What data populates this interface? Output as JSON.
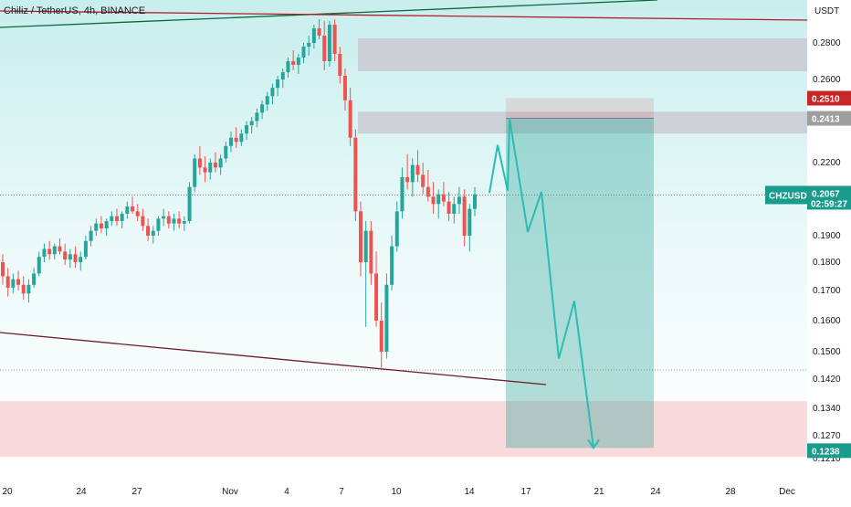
{
  "header": {
    "title": "Chiliz / TetherUS, 4h, BINANCE"
  },
  "colors": {
    "background_top": "#dff4f4",
    "background_bottom": "#ffffff",
    "up": "#26a69a",
    "down": "#ef5350",
    "resistance_zone": "#c8c8d0",
    "support_zone": "#f8d7da",
    "projection_box": "#1a9c8c",
    "projection_path": "#2bbcb4",
    "trendline_upper_green": "#0b6b3a",
    "trendline_upper_red": "#b0202a",
    "trendline_lower": "#6b1f2a",
    "tag_current": "#1a9c8c",
    "tag_red": "#c62828",
    "tag_gray": "#9e9e9e"
  },
  "chart_data": {
    "type": "candlestick",
    "currency": "USDT",
    "y_axis_ticks": [
      "0.2800",
      "0.2600",
      "0.2200",
      "0.1900",
      "0.1800",
      "0.1700",
      "0.1600",
      "0.1500",
      "0.1420",
      "0.1340",
      "0.1270",
      "0.1210"
    ],
    "x_axis_ticks": [
      "20",
      "24",
      "27",
      "Nov",
      "4",
      "7",
      "10",
      "14",
      "17",
      "21",
      "24",
      "28",
      "Dec"
    ],
    "price_tags": {
      "current_symbol": "CHZUSDT",
      "current_price": "0.2067",
      "countdown": "02:59:27",
      "upper_tag_red": "0.2510",
      "upper_tag_gray": "0.2413",
      "target_tag": "0.1238"
    },
    "zones": {
      "resistance_upper": [
        0.2645,
        0.2825
      ],
      "resistance_lower": [
        0.234,
        0.2445
      ],
      "support": [
        0.1215,
        0.136
      ]
    },
    "projection_box": {
      "price_from": 0.251,
      "price_to": 0.1238
    },
    "projection_path": [
      {
        "x": "Nov 15",
        "y": 0.2075
      },
      {
        "x": "Nov 16",
        "y": 0.2285
      },
      {
        "x": "Nov 16",
        "y": 0.2085
      },
      {
        "x": "Nov 17",
        "y": 0.2413
      },
      {
        "x": "Nov 18",
        "y": 0.1915
      },
      {
        "x": "Nov 19",
        "y": 0.208
      },
      {
        "x": "Nov 20",
        "y": 0.148
      },
      {
        "x": "Nov 21",
        "y": 0.1665
      },
      {
        "x": "Nov 22",
        "y": 0.1238
      }
    ],
    "candles": [
      [
        0.18,
        0.183,
        0.172,
        0.175
      ],
      [
        0.175,
        0.178,
        0.168,
        0.171
      ],
      [
        0.171,
        0.176,
        0.169,
        0.174
      ],
      [
        0.174,
        0.177,
        0.17,
        0.172
      ],
      [
        0.172,
        0.175,
        0.167,
        0.169
      ],
      [
        0.169,
        0.174,
        0.166,
        0.172
      ],
      [
        0.172,
        0.178,
        0.171,
        0.176
      ],
      [
        0.176,
        0.184,
        0.175,
        0.182
      ],
      [
        0.182,
        0.187,
        0.18,
        0.185
      ],
      [
        0.185,
        0.188,
        0.181,
        0.183
      ],
      [
        0.183,
        0.187,
        0.181,
        0.186
      ],
      [
        0.186,
        0.189,
        0.183,
        0.184
      ],
      [
        0.184,
        0.187,
        0.179,
        0.181
      ],
      [
        0.181,
        0.185,
        0.178,
        0.183
      ],
      [
        0.183,
        0.186,
        0.178,
        0.18
      ],
      [
        0.18,
        0.184,
        0.177,
        0.182
      ],
      [
        0.182,
        0.19,
        0.181,
        0.188
      ],
      [
        0.188,
        0.194,
        0.186,
        0.192
      ],
      [
        0.192,
        0.197,
        0.19,
        0.195
      ],
      [
        0.195,
        0.198,
        0.191,
        0.193
      ],
      [
        0.193,
        0.197,
        0.19,
        0.196
      ],
      [
        0.196,
        0.2,
        0.194,
        0.198
      ],
      [
        0.198,
        0.201,
        0.194,
        0.196
      ],
      [
        0.196,
        0.2,
        0.193,
        0.199
      ],
      [
        0.199,
        0.204,
        0.197,
        0.202
      ],
      [
        0.202,
        0.206,
        0.199,
        0.2
      ],
      [
        0.2,
        0.203,
        0.196,
        0.198
      ],
      [
        0.198,
        0.201,
        0.192,
        0.194
      ],
      [
        0.194,
        0.197,
        0.188,
        0.19
      ],
      [
        0.19,
        0.194,
        0.187,
        0.192
      ],
      [
        0.192,
        0.198,
        0.19,
        0.197
      ],
      [
        0.197,
        0.201,
        0.194,
        0.198
      ],
      [
        0.198,
        0.2,
        0.193,
        0.195
      ],
      [
        0.195,
        0.199,
        0.192,
        0.197
      ],
      [
        0.197,
        0.2,
        0.193,
        0.195
      ],
      [
        0.195,
        0.198,
        0.192,
        0.196
      ],
      [
        0.196,
        0.212,
        0.195,
        0.21
      ],
      [
        0.21,
        0.224,
        0.208,
        0.222
      ],
      [
        0.222,
        0.228,
        0.215,
        0.218
      ],
      [
        0.218,
        0.223,
        0.212,
        0.216
      ],
      [
        0.216,
        0.222,
        0.213,
        0.22
      ],
      [
        0.22,
        0.225,
        0.216,
        0.218
      ],
      [
        0.218,
        0.224,
        0.215,
        0.222
      ],
      [
        0.222,
        0.23,
        0.22,
        0.228
      ],
      [
        0.228,
        0.235,
        0.225,
        0.232
      ],
      [
        0.232,
        0.237,
        0.227,
        0.23
      ],
      [
        0.23,
        0.236,
        0.228,
        0.234
      ],
      [
        0.234,
        0.24,
        0.231,
        0.238
      ],
      [
        0.238,
        0.242,
        0.234,
        0.24
      ],
      [
        0.24,
        0.246,
        0.237,
        0.244
      ],
      [
        0.244,
        0.25,
        0.241,
        0.248
      ],
      [
        0.248,
        0.254,
        0.245,
        0.252
      ],
      [
        0.252,
        0.258,
        0.248,
        0.256
      ],
      [
        0.256,
        0.262,
        0.252,
        0.26
      ],
      [
        0.26,
        0.266,
        0.256,
        0.264
      ],
      [
        0.264,
        0.272,
        0.261,
        0.27
      ],
      [
        0.27,
        0.276,
        0.265,
        0.268
      ],
      [
        0.268,
        0.274,
        0.263,
        0.272
      ],
      [
        0.272,
        0.28,
        0.269,
        0.278
      ],
      [
        0.278,
        0.284,
        0.273,
        0.28
      ],
      [
        0.28,
        0.29,
        0.277,
        0.288
      ],
      [
        0.288,
        0.293,
        0.282,
        0.284
      ],
      [
        0.284,
        0.292,
        0.265,
        0.27
      ],
      [
        0.27,
        0.292,
        0.267,
        0.29
      ],
      [
        0.29,
        0.293,
        0.27,
        0.274
      ],
      [
        0.274,
        0.278,
        0.258,
        0.262
      ],
      [
        0.262,
        0.266,
        0.245,
        0.25
      ],
      [
        0.25,
        0.256,
        0.228,
        0.232
      ],
      [
        0.232,
        0.236,
        0.196,
        0.2
      ],
      [
        0.2,
        0.204,
        0.175,
        0.18
      ],
      [
        0.18,
        0.196,
        0.158,
        0.192
      ],
      [
        0.192,
        0.196,
        0.172,
        0.176
      ],
      [
        0.176,
        0.184,
        0.158,
        0.16
      ],
      [
        0.16,
        0.166,
        0.145,
        0.15
      ],
      [
        0.15,
        0.176,
        0.148,
        0.172
      ],
      [
        0.172,
        0.19,
        0.17,
        0.186
      ],
      [
        0.186,
        0.204,
        0.184,
        0.2
      ],
      [
        0.2,
        0.218,
        0.197,
        0.214
      ],
      [
        0.214,
        0.224,
        0.209,
        0.212
      ],
      [
        0.212,
        0.222,
        0.206,
        0.219
      ],
      [
        0.219,
        0.226,
        0.212,
        0.215
      ],
      [
        0.215,
        0.22,
        0.207,
        0.21
      ],
      [
        0.21,
        0.217,
        0.204,
        0.206
      ],
      [
        0.206,
        0.212,
        0.199,
        0.203
      ],
      [
        0.203,
        0.209,
        0.197,
        0.207
      ],
      [
        0.207,
        0.212,
        0.202,
        0.204
      ],
      [
        0.204,
        0.208,
        0.196,
        0.199
      ],
      [
        0.199,
        0.206,
        0.195,
        0.203
      ],
      [
        0.203,
        0.21,
        0.199,
        0.206
      ],
      [
        0.206,
        0.209,
        0.186,
        0.19
      ],
      [
        0.19,
        0.203,
        0.184,
        0.201
      ],
      [
        0.201,
        0.21,
        0.198,
        0.207
      ]
    ]
  }
}
